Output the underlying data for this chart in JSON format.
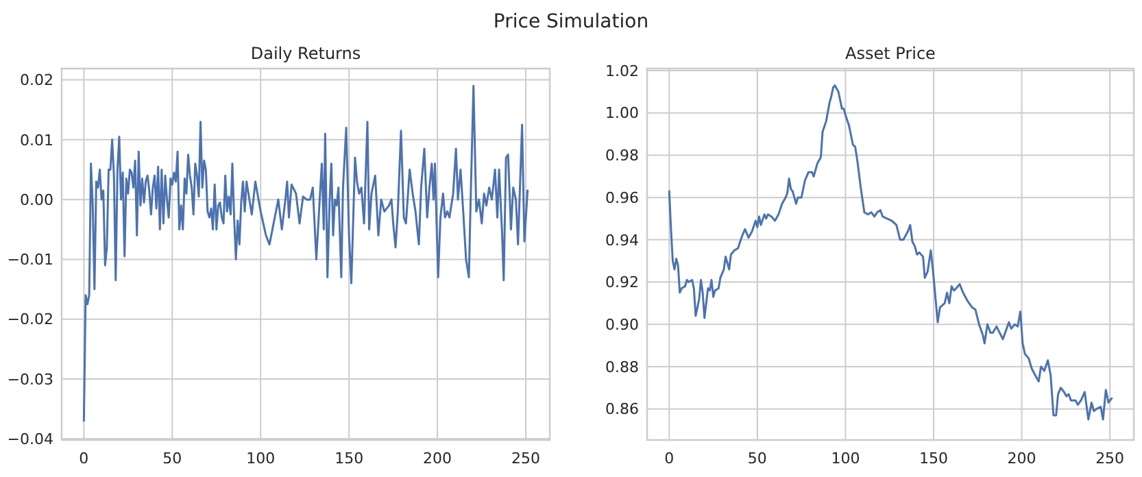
{
  "chart_data": [
    {
      "type": "line",
      "title": "Daily Returns",
      "annotations": [
        "Price Simulation"
      ],
      "grid": true,
      "marker": "none",
      "line_style": "solid",
      "xlim": [
        -12.55,
        263.55
      ],
      "ylim": [
        -0.0402,
        0.0219
      ],
      "xticks": [
        0,
        50,
        100,
        150,
        200,
        250
      ],
      "yticks": [
        {
          "value": -0.04,
          "label": "−0.04"
        },
        {
          "value": -0.03,
          "label": "−0.03"
        },
        {
          "value": -0.02,
          "label": "−0.02"
        },
        {
          "value": -0.01,
          "label": "−0.01"
        },
        {
          "value": 0,
          "label": "0.00"
        },
        {
          "value": 0.01,
          "label": "0.01"
        },
        {
          "value": 0.02,
          "label": "0.02"
        }
      ],
      "series": [
        {
          "color": "#4c72b0",
          "x": [
            0,
            1,
            2,
            3,
            4,
            5,
            6,
            7,
            8,
            9,
            10,
            11,
            12,
            13,
            14,
            15,
            16,
            17,
            18,
            19,
            20,
            21,
            22,
            23,
            24,
            25,
            26,
            27,
            28,
            29,
            30,
            31,
            32,
            33,
            34,
            35,
            36,
            37,
            38,
            39,
            40,
            41,
            42,
            43,
            44,
            45,
            46,
            47,
            48,
            49,
            50,
            51,
            52,
            53,
            54,
            55,
            56,
            57,
            58,
            59,
            60,
            61,
            62,
            63,
            64,
            65,
            66,
            67,
            68,
            69,
            70,
            71,
            72,
            73,
            74,
            75,
            76,
            77,
            78,
            79,
            80,
            81,
            82,
            83,
            84,
            85,
            86,
            87,
            88,
            89,
            90,
            91,
            92,
            95,
            97,
            100,
            103,
            105,
            108,
            110,
            112,
            114,
            115,
            116,
            117.5,
            120,
            122,
            124,
            126,
            128,
            129.5,
            131.5,
            133.6,
            134.6,
            135.7,
            136.5,
            137.8,
            139,
            140,
            141,
            142,
            143,
            144,
            145.6,
            146.6,
            148.4,
            150,
            151.3,
            153.4,
            154.5,
            155.7,
            157,
            158.5,
            160.4,
            161.4,
            162.7,
            164.8,
            166.6,
            168.2,
            170,
            172.6,
            174,
            175,
            176.3,
            177.6,
            179.4,
            181,
            182.2,
            184.3,
            186,
            187.6,
            189.5,
            190.8,
            192.6,
            194.2,
            195.5,
            196.8,
            197.8,
            198.6,
            200.4,
            201.7,
            203.2,
            204.3,
            205.6,
            206.8,
            208.9,
            210.5,
            211.6,
            213.1,
            214.6,
            216.2,
            217.8,
            218.8,
            220.4,
            222,
            223.5,
            225.1,
            226.4,
            227.7,
            229.3,
            230.8,
            232.6,
            233.9,
            234.9,
            236.5,
            237.5,
            238.8,
            240,
            241.6,
            242.9,
            244.4,
            245.6,
            247.9,
            249.2,
            251
          ],
          "values": [
            -0.037,
            -0.016,
            -0.0175,
            -0.016,
            0.006,
            -0.001,
            -0.015,
            0.003,
            0.002,
            0.005,
            0.0,
            0.0015,
            -0.011,
            -0.008,
            0.005,
            0.005,
            0.01,
            0.004,
            -0.0135,
            0.005,
            0.0105,
            0.0,
            0.0045,
            -0.0095,
            0.0035,
            0.001,
            0.005,
            0.0045,
            0.002,
            0.0065,
            -0.006,
            0.008,
            -0.001,
            0.0035,
            -0.0005,
            0.003,
            0.004,
            0.0015,
            -0.0025,
            0.002,
            0.004,
            -0.0015,
            0.0055,
            -0.005,
            0.005,
            -0.004,
            0.004,
            0.0,
            -0.003,
            0.0035,
            0.0025,
            0.0045,
            0.003,
            0.008,
            -0.005,
            -0.001,
            -0.005,
            0.0035,
            0.001,
            0.0075,
            0.004,
            0.002,
            -0.0025,
            0.006,
            0.004,
            0.0005,
            0.013,
            0.002,
            0.0065,
            0.005,
            -0.002,
            -0.003,
            -0.0015,
            -0.005,
            0.0025,
            -0.005,
            -0.001,
            -0.0005,
            -0.003,
            -0.004,
            0.004,
            -0.002,
            0.0005,
            -0.0025,
            0.006,
            -0.003,
            -0.01,
            -0.0035,
            -0.0075,
            -0.0005,
            0.003,
            -0.002,
            0.003,
            -0.0025,
            0.003,
            -0.002,
            -0.006,
            -0.0075,
            -0.003,
            0.0,
            -0.005,
            0.0,
            0.003,
            -0.003,
            0.0025,
            0.001,
            -0.004,
            0.0005,
            0.0,
            0.0,
            0.002,
            -0.01,
            0.001,
            0.006,
            -0.005,
            0.011,
            -0.013,
            -0.0005,
            0.006,
            -0.006,
            0.0,
            -0.001,
            0.002,
            -0.013,
            0.002,
            0.012,
            -0.006,
            -0.014,
            0.007,
            0.003,
            0.001,
            0.002,
            -0.004,
            0.013,
            -0.005,
            0.001,
            0.004,
            -0.006,
            0.0,
            -0.002,
            -0.001,
            0.0,
            -0.004,
            -0.008,
            -0.002,
            0.0115,
            -0.003,
            -0.004,
            0.005,
            0.001,
            -0.002,
            -0.0075,
            0.002,
            0.0085,
            -0.003,
            0.002,
            0.006,
            0.0,
            0.006,
            -0.013,
            -0.003,
            0.001,
            -0.003,
            -0.002,
            -0.003,
            0.001,
            0.0085,
            0.0,
            0.005,
            -0.002,
            -0.01,
            -0.013,
            0.0,
            0.019,
            -0.002,
            0.0,
            -0.004,
            0.001,
            -0.001,
            0.002,
            0.0,
            0.005,
            -0.003,
            0.005,
            -0.005,
            -0.0135,
            0.007,
            0.0075,
            -0.005,
            0.002,
            0.0,
            -0.0075,
            0.0125,
            -0.007,
            0.0015
          ]
        }
      ]
    },
    {
      "type": "line",
      "title": "Asset Price",
      "grid": true,
      "marker": "none",
      "line_style": "solid",
      "xlim": [
        -12.55,
        263.55
      ],
      "ylim": [
        0.8453,
        1.021
      ],
      "xticks": [
        0,
        50,
        100,
        150,
        200,
        250
      ],
      "yticks": [
        {
          "value": 0.86,
          "label": "0.86"
        },
        {
          "value": 0.88,
          "label": "0.88"
        },
        {
          "value": 0.9,
          "label": "0.90"
        },
        {
          "value": 0.92,
          "label": "0.92"
        },
        {
          "value": 0.94,
          "label": "0.94"
        },
        {
          "value": 0.96,
          "label": "0.96"
        },
        {
          "value": 0.98,
          "label": "0.98"
        },
        {
          "value": 1.0,
          "label": "1.00"
        },
        {
          "value": 1.02,
          "label": "1.02"
        }
      ],
      "series": [
        {
          "color": "#4c72b0",
          "x": [
            0,
            1,
            2,
            3,
            4,
            5,
            6,
            7,
            9,
            10,
            11,
            13,
            14,
            15,
            17,
            18,
            19,
            20,
            22,
            23,
            24,
            25,
            26,
            28,
            29,
            31,
            32,
            34,
            35,
            37,
            39,
            41,
            43,
            45,
            47,
            49,
            50,
            51,
            52,
            54,
            55,
            56,
            58,
            60,
            62,
            64,
            66,
            67,
            68,
            69,
            70,
            72,
            73,
            75,
            77,
            79,
            81,
            82,
            84,
            86,
            87,
            89,
            91,
            92,
            93,
            94,
            96,
            98,
            99,
            100,
            102,
            104.2,
            105.5,
            106.8,
            108.6,
            110.7,
            112.8,
            114.6,
            116.4,
            118,
            119.8,
            121.1,
            123.7,
            126.3,
            128.9,
            131,
            132.8,
            134.1,
            135.4,
            136.7,
            138,
            139.3,
            140.6,
            141.9,
            144,
            145,
            146.6,
            148.4,
            149.7,
            152.3,
            153.6,
            156.3,
            157.6,
            158.9,
            160.2,
            161.5,
            162.8,
            164.8,
            166.7,
            169.3,
            171.9,
            173.7,
            175.8,
            177.9,
            178.9,
            180.5,
            182.3,
            183.6,
            185.7,
            187.5,
            189.3,
            190.6,
            192.7,
            194,
            196.1,
            197.7,
            199.2,
            200.5,
            201.8,
            203.9,
            205.7,
            207.6,
            209.6,
            210.9,
            212.8,
            214.8,
            216.4,
            218,
            219.5,
            220.6,
            222.1,
            224,
            225.3,
            226.6,
            227.9,
            230.5,
            231.8,
            233.6,
            235.7,
            237.8,
            239.6,
            240.9,
            242.4,
            244.8,
            246.1,
            247.7,
            249.2,
            251
          ],
          "values": [
            0.963,
            0.945,
            0.93,
            0.926,
            0.931,
            0.928,
            0.915,
            0.917,
            0.918,
            0.921,
            0.92,
            0.921,
            0.917,
            0.904,
            0.912,
            0.921,
            0.915,
            0.903,
            0.917,
            0.916,
            0.921,
            0.913,
            0.916,
            0.917,
            0.922,
            0.926,
            0.932,
            0.926,
            0.933,
            0.935,
            0.936,
            0.941,
            0.945,
            0.941,
            0.944,
            0.949,
            0.946,
            0.951,
            0.947,
            0.952,
            0.95,
            0.952,
            0.951,
            0.949,
            0.952,
            0.957,
            0.96,
            0.962,
            0.969,
            0.964,
            0.963,
            0.957,
            0.96,
            0.96,
            0.968,
            0.972,
            0.972,
            0.97,
            0.976,
            0.979,
            0.991,
            0.996,
            1.005,
            1.008,
            1.012,
            1.013,
            1.01,
            1.002,
            1.002,
            0.999,
            0.994,
            0.985,
            0.984,
            0.977,
            0.965,
            0.953,
            0.952,
            0.953,
            0.951,
            0.953,
            0.954,
            0.951,
            0.95,
            0.949,
            0.947,
            0.94,
            0.94,
            0.942,
            0.944,
            0.947,
            0.939,
            0.937,
            0.933,
            0.934,
            0.932,
            0.922,
            0.925,
            0.935,
            0.925,
            0.901,
            0.908,
            0.91,
            0.915,
            0.91,
            0.918,
            0.916,
            0.917,
            0.919,
            0.915,
            0.911,
            0.908,
            0.907,
            0.9,
            0.895,
            0.891,
            0.9,
            0.896,
            0.896,
            0.899,
            0.896,
            0.893,
            0.896,
            0.901,
            0.898,
            0.9,
            0.899,
            0.906,
            0.891,
            0.886,
            0.884,
            0.879,
            0.876,
            0.873,
            0.88,
            0.878,
            0.883,
            0.876,
            0.857,
            0.857,
            0.867,
            0.87,
            0.868,
            0.866,
            0.867,
            0.864,
            0.864,
            0.862,
            0.864,
            0.868,
            0.855,
            0.863,
            0.859,
            0.86,
            0.861,
            0.855,
            0.869,
            0.863,
            0.865
          ]
        }
      ]
    }
  ]
}
